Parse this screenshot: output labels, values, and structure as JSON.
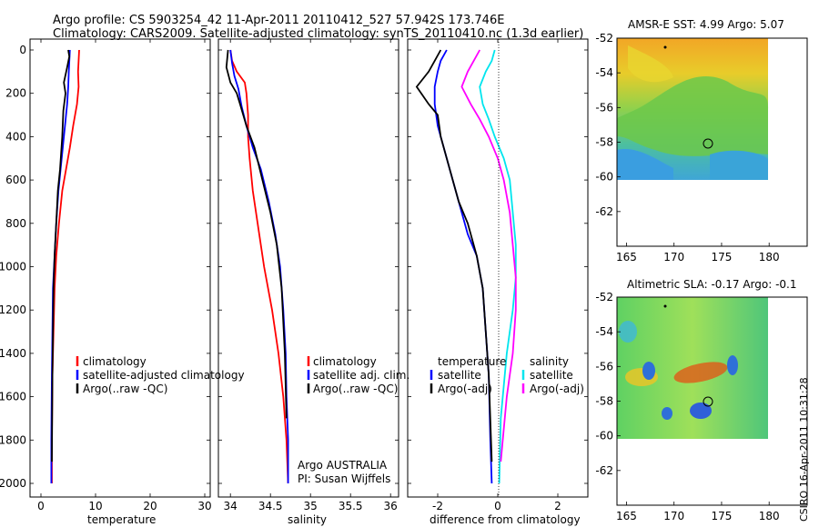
{
  "header": {
    "line1": "Argo profile: CS 5903254_42 11-Apr-2011 20110412_527 57.942S 173.746E",
    "line2": "Climatology: CARS2009. Satellite-adjusted climatology: synTS_20110410.nc (1.3d earlier)"
  },
  "footer": {
    "credit": "Argo AUSTRALIA",
    "pi": "PI: Susan Wijffels",
    "timestamp": "CSIRO 16-Apr-2011 10:31:28"
  },
  "colors": {
    "climatology": "#ff0000",
    "satellite": "#0000ff",
    "argo": "#000000",
    "sal_satellite": "#00e5ee",
    "sal_argo": "#ff00ff"
  },
  "chart_data": [
    {
      "type": "line",
      "title": "",
      "xlabel": "temperature",
      "ylabel": "",
      "xlim": [
        -2,
        31
      ],
      "ylim": [
        2060,
        0
      ],
      "xticks": [
        0,
        10,
        20,
        30
      ],
      "yticks": [
        0,
        200,
        400,
        600,
        800,
        1000,
        1200,
        1400,
        1600,
        1800,
        2000
      ],
      "legend": [
        "climatology",
        "satellite-adjusted climatology",
        "Argo(..raw -QC)"
      ],
      "series": [
        {
          "name": "climatology",
          "color": "#ff0000",
          "x": [
            7.0,
            6.9,
            6.8,
            6.9,
            6.6,
            5.9,
            5.3,
            4.6,
            3.9,
            3.3,
            2.8,
            2.5,
            2.3,
            2.1,
            2.0,
            2.0
          ],
          "y": [
            0,
            50,
            100,
            170,
            250,
            350,
            450,
            550,
            650,
            800,
            950,
            1100,
            1300,
            1500,
            1800,
            2000
          ]
        },
        {
          "name": "satellite-adjusted climatology",
          "color": "#0000ff",
          "x": [
            5.3,
            5.2,
            5.1,
            5.0,
            4.8,
            4.4,
            4.0,
            3.6,
            3.2,
            2.8,
            2.5,
            2.2,
            2.1,
            2.0,
            1.9,
            1.9
          ],
          "y": [
            0,
            50,
            100,
            170,
            250,
            350,
            450,
            550,
            650,
            800,
            950,
            1100,
            1300,
            1500,
            1800,
            2000
          ]
        },
        {
          "name": "Argo(..raw -QC)",
          "color": "#000000",
          "x": [
            5.0,
            5.2,
            4.8,
            4.2,
            4.5,
            4.1,
            3.9,
            3.5,
            3.1,
            2.8,
            2.5,
            2.3,
            2.2,
            2.1,
            2.0
          ],
          "y": [
            0,
            30,
            80,
            150,
            200,
            280,
            400,
            550,
            650,
            800,
            950,
            1100,
            1300,
            1500,
            1900
          ]
        }
      ]
    },
    {
      "type": "line",
      "title": "",
      "xlabel": "salinity",
      "ylabel": "",
      "xlim": [
        33.85,
        36.1
      ],
      "ylim": [
        2060,
        0
      ],
      "xticks": [
        34,
        34.5,
        35,
        35.5,
        36
      ],
      "legend": [
        "climatology",
        "satellite adj. clim.",
        "Argo(..raw -QC)"
      ],
      "series": [
        {
          "name": "climatology",
          "color": "#ff0000",
          "x": [
            34.0,
            34.02,
            34.08,
            34.18,
            34.2,
            34.22,
            34.22,
            34.24,
            34.28,
            34.34,
            34.42,
            34.52,
            34.6,
            34.66,
            34.7,
            34.72
          ],
          "y": [
            0,
            50,
            100,
            150,
            200,
            300,
            400,
            500,
            650,
            800,
            1000,
            1200,
            1400,
            1600,
            1800,
            2000
          ]
        },
        {
          "name": "satellite adj. clim.",
          "color": "#0000ff",
          "x": [
            34.0,
            34.02,
            34.05,
            34.1,
            34.14,
            34.2,
            34.28,
            34.38,
            34.48,
            34.56,
            34.62,
            34.66,
            34.69,
            34.7,
            34.72,
            34.72
          ],
          "y": [
            0,
            60,
            120,
            180,
            260,
            350,
            450,
            550,
            700,
            850,
            1000,
            1200,
            1400,
            1600,
            1800,
            2000
          ]
        },
        {
          "name": "Argo(..raw -QC)",
          "color": "#000000",
          "x": [
            33.97,
            33.95,
            34.0,
            34.08,
            34.12,
            34.2,
            34.3,
            34.4,
            34.5,
            34.58,
            34.64,
            34.68,
            34.7
          ],
          "y": [
            0,
            80,
            150,
            200,
            250,
            350,
            450,
            600,
            750,
            900,
            1100,
            1400,
            1700
          ]
        }
      ]
    },
    {
      "type": "line",
      "title": "",
      "xlabel": "difference from climatology",
      "ylabel": "",
      "xlim": [
        -3,
        3
      ],
      "ylim": [
        2060,
        0
      ],
      "xticks": [
        -2,
        0,
        2
      ],
      "legend": [
        "temperature",
        "satellite",
        "Argo(-adj)",
        "salinity",
        "satellite",
        "Argo(-adj)"
      ],
      "series": [
        {
          "name": "temperature satellite",
          "color": "#0000ff",
          "x": [
            -1.7,
            -1.9,
            -2.0,
            -2.1,
            -2.1,
            -2.0,
            -1.8,
            -1.6,
            -1.4,
            -1.2,
            -1.0,
            -0.7,
            -0.5,
            -0.4,
            -0.3,
            -0.25,
            -0.2
          ],
          "y": [
            0,
            50,
            100,
            170,
            250,
            350,
            450,
            550,
            650,
            750,
            850,
            950,
            1100,
            1300,
            1500,
            1800,
            2000
          ]
        },
        {
          "name": "temperature Argo(-adj)",
          "color": "#000000",
          "x": [
            -1.9,
            -2.1,
            -2.3,
            -2.7,
            -2.3,
            -2.0,
            -1.9,
            -1.7,
            -1.5,
            -1.3,
            -1.0,
            -0.7,
            -0.5,
            -0.4,
            -0.3,
            -0.2
          ],
          "y": [
            0,
            50,
            100,
            170,
            250,
            300,
            400,
            500,
            600,
            700,
            800,
            950,
            1100,
            1300,
            1500,
            1900
          ]
        },
        {
          "name": "salinity satellite",
          "color": "#00e5ee",
          "x": [
            -0.1,
            -0.2,
            -0.4,
            -0.6,
            -0.5,
            -0.3,
            -0.1,
            0.2,
            0.4,
            0.5,
            0.6,
            0.6,
            0.5,
            0.3,
            0.1,
            0.05
          ],
          "y": [
            0,
            50,
            100,
            170,
            250,
            320,
            400,
            500,
            600,
            750,
            900,
            1050,
            1200,
            1400,
            1700,
            2000
          ]
        },
        {
          "name": "salinity Argo(-adj)",
          "color": "#ff00ff",
          "x": [
            -0.6,
            -0.8,
            -1.0,
            -1.2,
            -0.9,
            -0.6,
            -0.3,
            0.0,
            0.2,
            0.4,
            0.5,
            0.6,
            0.6,
            0.5,
            0.3,
            0.1
          ],
          "y": [
            0,
            50,
            100,
            170,
            250,
            320,
            400,
            500,
            600,
            750,
            900,
            1050,
            1200,
            1400,
            1600,
            1900
          ]
        }
      ]
    },
    {
      "type": "heatmap",
      "title": "AMSR-E SST: 4.99 Argo: 5.07",
      "xlim": [
        164,
        184
      ],
      "ylim": [
        -64,
        -52
      ],
      "xticks": [
        165,
        170,
        175,
        180
      ],
      "yticks": [
        -52,
        -54,
        -56,
        -58,
        -60,
        -62
      ],
      "float_position": {
        "lon": 173.746,
        "lat": -57.942
      }
    },
    {
      "type": "heatmap",
      "title": "Altimetric SLA: -0.17 Argo: -0.1",
      "xlim": [
        164,
        184
      ],
      "ylim": [
        -64,
        -52
      ],
      "xticks": [
        165,
        170,
        175,
        180
      ],
      "yticks": [
        -52,
        -54,
        -56,
        -58,
        -60,
        -62
      ],
      "float_position": {
        "lon": 173.746,
        "lat": -57.942
      }
    }
  ]
}
